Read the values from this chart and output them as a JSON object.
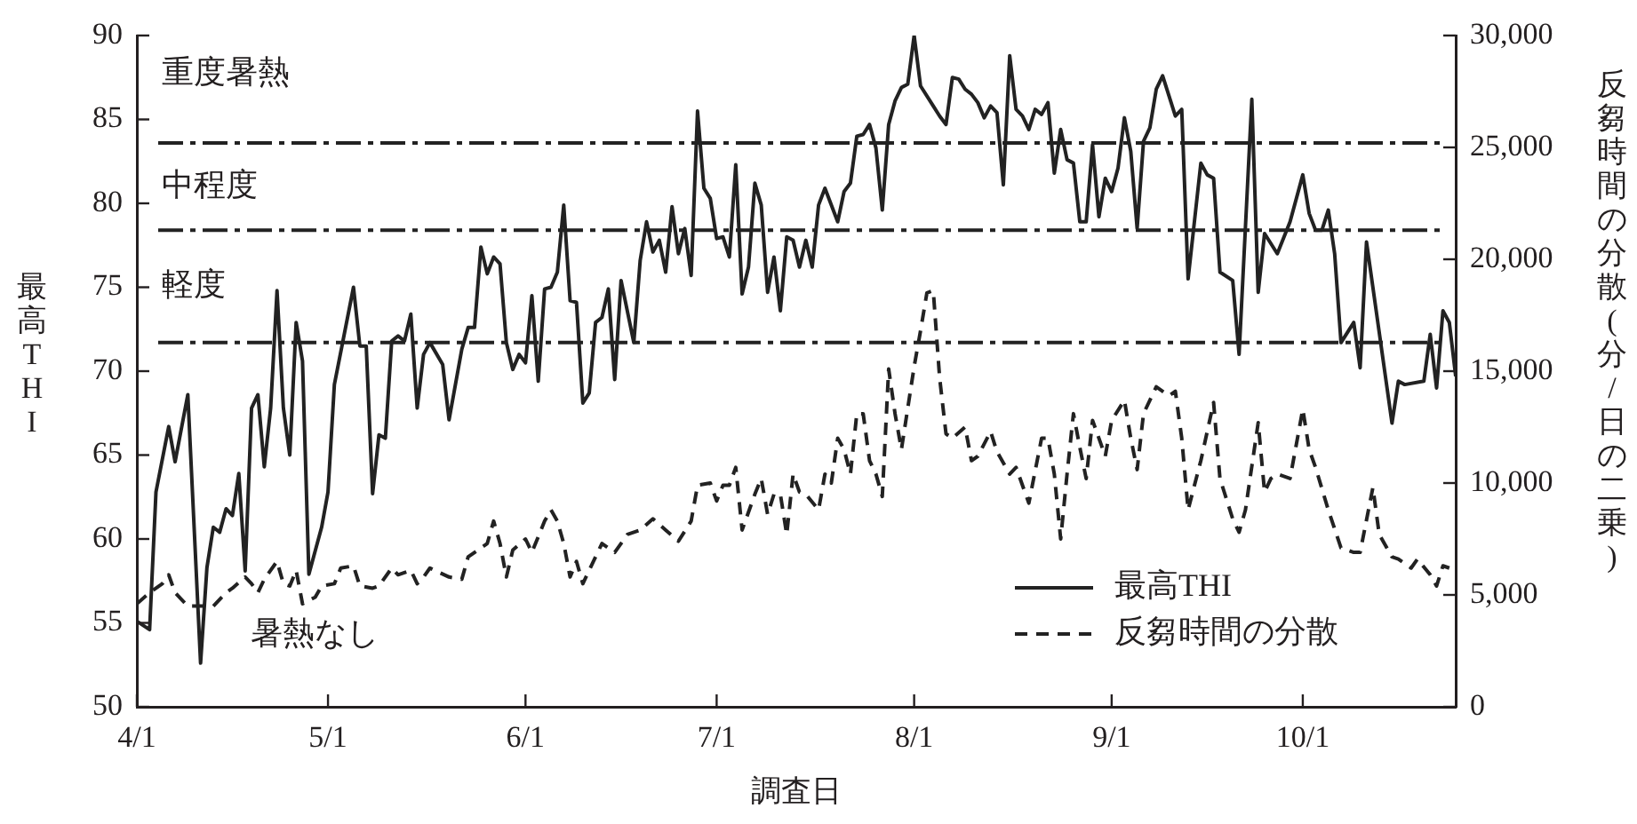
{
  "chart_data": {
    "type": "line",
    "xlabel": "調査日",
    "ylabel": "最高THI",
    "y2label": "反芻時間の分散(分/日の二乗)",
    "xlim": [
      "--04-01",
      "--10-25"
    ],
    "xticks": [
      {
        "value": "--04-01",
        "label": "4/1"
      },
      {
        "value": "--05-01",
        "label": "5/1"
      },
      {
        "value": "--06-01",
        "label": "6/1"
      },
      {
        "value": "--07-01",
        "label": "7/1"
      },
      {
        "value": "--08-01",
        "label": "8/1"
      },
      {
        "value": "--09-01",
        "label": "9/1"
      },
      {
        "value": "--10-01",
        "label": "10/1"
      }
    ],
    "ylim": [
      50,
      90
    ],
    "yticks": [
      50,
      55,
      60,
      65,
      70,
      75,
      80,
      85,
      90
    ],
    "y2lim": [
      0,
      30000
    ],
    "y2ticks": [
      0,
      {
        "value": 5000,
        "label": "5,000"
      },
      {
        "value": 10000,
        "label": "10,000"
      },
      {
        "value": 15000,
        "label": "15,000"
      },
      {
        "value": 20000,
        "label": "20,000"
      },
      {
        "value": 25000,
        "label": "25,000"
      },
      {
        "value": 30000,
        "label": "30,000"
      }
    ],
    "marker": "none",
    "legend": "bottom right",
    "ref_lines": [
      {
        "axis": "y",
        "value": 83.6,
        "color": "#222222",
        "line_style": "dashdot"
      },
      {
        "axis": "y",
        "value": 78.4,
        "color": "#222222",
        "line_style": "dashdot"
      },
      {
        "axis": "y",
        "value": 71.7,
        "color": "#222222",
        "line_style": "dashdot"
      }
    ],
    "annotations": [
      "重度暑熱",
      "中程度",
      "軽度",
      "暑熱なし"
    ],
    "series": [
      {
        "name": "最高THI",
        "color": "#222222",
        "line_style": "solid",
        "x": [
          "--04-01",
          "--04-03",
          "--04-04",
          "--04-06",
          "--04-07",
          "--04-09",
          "--04-11",
          "--04-12",
          "--04-13",
          "--04-14",
          "--04-15",
          "--04-16",
          "--04-17",
          "--04-18",
          "--04-19",
          "--04-20",
          "--04-21",
          "--04-22",
          "--04-23",
          "--04-24",
          "--04-25",
          "--04-26",
          "--04-27",
          "--04-28",
          "--04-30",
          "--05-01",
          "--05-02",
          "--05-05",
          "--05-06",
          "--05-07",
          "--05-08",
          "--05-09",
          "--05-10",
          "--05-11",
          "--05-12",
          "--05-13",
          "--05-14",
          "--05-15",
          "--05-16",
          "--05-17",
          "--05-19",
          "--05-20",
          "--05-22",
          "--05-23",
          "--05-24",
          "--05-25",
          "--05-26",
          "--05-27",
          "--05-28",
          "--05-29",
          "--05-30",
          "--05-31",
          "--06-01",
          "--06-02",
          "--06-03",
          "--06-04",
          "--06-05",
          "--06-06",
          "--06-07",
          "--06-08",
          "--06-09",
          "--06-10",
          "--06-11",
          "--06-12",
          "--06-13",
          "--06-14",
          "--06-15",
          "--06-16",
          "--06-18",
          "--06-19",
          "--06-20",
          "--06-21",
          "--06-22",
          "--06-23",
          "--06-24",
          "--06-25",
          "--06-26",
          "--06-27",
          "--06-28",
          "--06-29",
          "--06-30",
          "--07-01",
          "--07-02",
          "--07-03",
          "--07-04",
          "--07-05",
          "--07-06",
          "--07-07",
          "--07-08",
          "--07-09",
          "--07-10",
          "--07-11",
          "--07-12",
          "--07-13",
          "--07-14",
          "--07-15",
          "--07-16",
          "--07-17",
          "--07-18",
          "--07-20",
          "--07-21",
          "--07-22",
          "--07-23",
          "--07-24",
          "--07-25",
          "--07-26",
          "--07-27",
          "--07-28",
          "--07-29",
          "--07-30",
          "--07-31",
          "--08-01",
          "--08-02",
          "--08-04",
          "--08-05",
          "--08-06",
          "--08-07",
          "--08-08",
          "--08-09",
          "--08-10",
          "--08-11",
          "--08-12",
          "--08-13",
          "--08-14",
          "--08-15",
          "--08-16",
          "--08-17",
          "--08-18",
          "--08-19",
          "--08-20",
          "--08-21",
          "--08-22",
          "--08-23",
          "--08-24",
          "--08-25",
          "--08-26",
          "--08-27",
          "--08-28",
          "--08-29",
          "--08-30",
          "--08-31",
          "--09-01",
          "--09-02",
          "--09-03",
          "--09-04",
          "--09-05",
          "--09-06",
          "--09-07",
          "--09-08",
          "--09-09",
          "--09-11",
          "--09-12",
          "--09-13",
          "--09-15",
          "--09-16",
          "--09-17",
          "--09-18",
          "--09-20",
          "--09-21",
          "--09-23",
          "--09-24",
          "--09-25",
          "--09-27",
          "--09-29",
          "--10-01",
          "--10-02",
          "--10-03",
          "--10-04",
          "--10-05",
          "--10-06",
          "--10-07",
          "--10-09",
          "--10-10",
          "--10-11",
          "--10-15",
          "--10-16",
          "--10-17",
          "--10-20",
          "--10-21",
          "--10-22",
          "--10-23",
          "--10-24",
          "--10-25"
        ],
        "values": [
          55.1,
          54.6,
          62.8,
          66.7,
          64.6,
          68.6,
          52.6,
          58.3,
          60.7,
          60.4,
          61.8,
          61.4,
          63.9,
          58.1,
          67.8,
          68.6,
          64.3,
          67.8,
          74.8,
          67.8,
          65.0,
          72.9,
          70.6,
          57.9,
          60.7,
          62.8,
          69.2,
          75.0,
          71.5,
          71.5,
          62.7,
          66.2,
          66.0,
          71.8,
          72.1,
          71.8,
          73.4,
          67.8,
          71.0,
          71.7,
          70.4,
          67.1,
          71.3,
          72.6,
          72.6,
          77.4,
          75.8,
          76.8,
          76.4,
          71.7,
          70.1,
          71.0,
          70.5,
          74.5,
          69.4,
          74.9,
          75.0,
          75.9,
          79.9,
          74.2,
          74.1,
          68.1,
          68.7,
          72.9,
          73.2,
          74.9,
          69.5,
          75.4,
          71.7,
          76.6,
          78.9,
          77.1,
          77.8,
          75.9,
          79.8,
          77.0,
          78.5,
          75.7,
          85.5,
          80.9,
          80.3,
          77.9,
          78.0,
          76.8,
          82.3,
          74.6,
          76.2,
          81.2,
          79.9,
          74.7,
          76.8,
          73.6,
          78.0,
          77.8,
          76.2,
          77.8,
          76.2,
          79.9,
          80.9,
          78.9,
          80.7,
          81.2,
          84.0,
          84.1,
          84.7,
          83.3,
          79.6,
          84.7,
          86.1,
          86.9,
          87.1,
          90.0,
          87.0,
          85.8,
          85.2,
          84.7,
          87.5,
          87.4,
          86.8,
          86.5,
          86.0,
          85.1,
          85.8,
          85.4,
          81.1,
          88.8,
          85.6,
          85.2,
          84.4,
          85.6,
          85.3,
          86.0,
          81.8,
          84.4,
          82.6,
          82.4,
          78.9,
          78.9,
          83.5,
          79.2,
          81.5,
          80.7,
          82.1,
          85.1,
          83.1,
          78.5,
          83.7,
          84.5,
          86.8,
          87.6,
          85.2,
          85.6,
          75.5,
          82.4,
          81.7,
          81.5,
          75.9,
          75.4,
          71.0,
          86.2,
          74.7,
          78.2,
          77.0,
          78.9,
          81.7,
          79.4,
          78.4,
          78.4,
          79.6,
          77.0,
          71.7,
          72.9,
          70.2,
          77.7,
          66.9,
          69.4,
          69.2,
          69.4,
          72.2,
          69.0,
          73.6,
          72.9,
          69.7
        ]
      },
      {
        "name": "反芻時間の分散",
        "color": "#222222",
        "line_style": "dashed",
        "axis": "y2",
        "x": [
          "--04-01",
          "--04-03",
          "--04-05",
          "--04-06",
          "--04-07",
          "--04-09",
          "--04-11",
          "--04-13",
          "--04-15",
          "--04-16",
          "--04-18",
          "--04-19",
          "--04-20",
          "--04-21",
          "--04-23",
          "--04-24",
          "--04-25",
          "--04-26",
          "--04-27",
          "--04-29",
          "--04-30",
          "--05-02",
          "--05-03",
          "--05-05",
          "--05-06",
          "--05-08",
          "--05-09",
          "--05-11",
          "--05-12",
          "--05-14",
          "--05-15",
          "--05-16",
          "--05-17",
          "--05-20",
          "--05-22",
          "--05-23",
          "--05-25",
          "--05-26",
          "--05-27",
          "--05-28",
          "--05-29",
          "--05-30",
          "--06-01",
          "--06-02",
          "--06-04",
          "--06-05",
          "--06-06",
          "--06-07",
          "--06-08",
          "--06-09",
          "--06-10",
          "--06-12",
          "--06-13",
          "--06-15",
          "--06-17",
          "--06-19",
          "--06-21",
          "--06-23",
          "--06-25",
          "--06-27",
          "--06-28",
          "--06-30",
          "--07-01",
          "--07-02",
          "--07-03",
          "--07-04",
          "--07-05",
          "--07-07",
          "--07-08",
          "--07-09",
          "--07-10",
          "--07-11",
          "--07-12",
          "--07-13",
          "--07-14",
          "--07-15",
          "--07-17",
          "--07-18",
          "--07-19",
          "--07-20",
          "--07-21",
          "--07-22",
          "--07-23",
          "--07-24",
          "--07-25",
          "--07-26",
          "--07-27",
          "--07-28",
          "--07-29",
          "--07-30",
          "--08-01",
          "--08-02",
          "--08-03",
          "--08-04",
          "--08-05",
          "--08-06",
          "--08-07",
          "--08-09",
          "--08-10",
          "--08-11",
          "--08-13",
          "--08-14",
          "--08-16",
          "--08-17",
          "--08-19",
          "--08-21",
          "--08-22",
          "--08-23",
          "--08-24",
          "--08-25",
          "--08-26",
          "--08-27",
          "--08-28",
          "--08-29",
          "--08-31",
          "--09-01",
          "--09-03",
          "--09-04",
          "--09-05",
          "--09-06",
          "--09-08",
          "--09-10",
          "--09-11",
          "--09-12",
          "--09-13",
          "--09-15",
          "--09-17",
          "--09-18",
          "--09-20",
          "--09-21",
          "--09-22",
          "--09-24",
          "--09-25",
          "--09-26",
          "--09-27",
          "--09-29",
          "--10-01",
          "--10-02",
          "--10-03",
          "--10-05",
          "--10-07",
          "--10-09",
          "--10-10",
          "--10-12",
          "--10-13",
          "--10-15",
          "--10-16",
          "--10-18",
          "--10-19",
          "--10-21",
          "--10-22",
          "--10-23",
          "--10-24"
        ],
        "values": [
          4600,
          5100,
          5500,
          5900,
          5100,
          4500,
          4500,
          4500,
          5100,
          5300,
          5800,
          5500,
          5100,
          5700,
          6500,
          5500,
          5400,
          6100,
          4600,
          4900,
          5400,
          5500,
          6200,
          6300,
          5400,
          5300,
          5400,
          6200,
          5900,
          6100,
          5500,
          5800,
          6200,
          5800,
          5700,
          6700,
          7100,
          7300,
          8300,
          7300,
          5800,
          7000,
          7500,
          6900,
          8300,
          8800,
          8300,
          7300,
          5800,
          6500,
          5500,
          6700,
          7300,
          6900,
          7700,
          7900,
          8400,
          7900,
          7400,
          8300,
          9900,
          10000,
          9200,
          9900,
          9900,
          10700,
          7900,
          9500,
          10200,
          8600,
          9500,
          9500,
          7700,
          10400,
          9600,
          9500,
          8800,
          10400,
          10000,
          12000,
          11500,
          10400,
          13100,
          13100,
          11000,
          10400,
          9400,
          15100,
          13100,
          11500,
          15200,
          16800,
          18500,
          18600,
          14700,
          12200,
          12000,
          12500,
          11000,
          11200,
          12300,
          11400,
          10400,
          10700,
          9100,
          12000,
          12000,
          10400,
          7500,
          10400,
          13100,
          11600,
          10200,
          12800,
          11200,
          12800,
          13700,
          12000,
          10600,
          13100,
          14300,
          13900,
          14100,
          12000,
          8800,
          11000,
          13600,
          10200,
          8400,
          7800,
          8800,
          12700,
          9600,
          10200,
          10400,
          10200,
          13300,
          11500,
          10700,
          8800,
          7100,
          6900,
          6900,
          9800,
          7700,
          6700,
          6600,
          6200,
          6600,
          5900,
          5400,
          6300,
          6200
        ]
      }
    ]
  }
}
